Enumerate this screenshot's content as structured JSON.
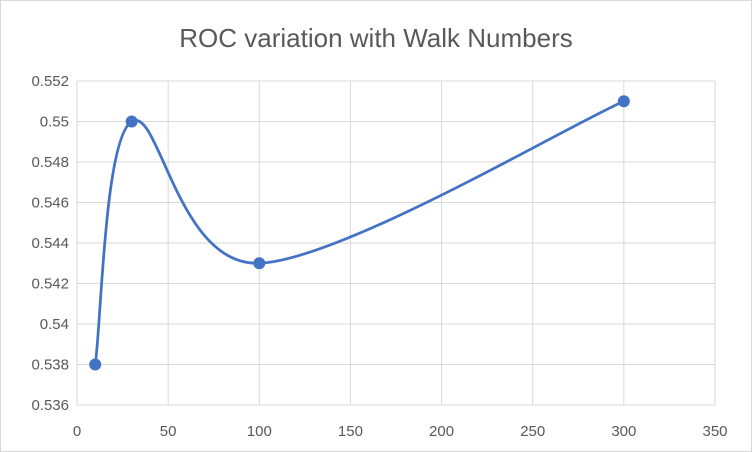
{
  "chart_data": {
    "type": "line",
    "title": "ROC variation with Walk Numbers",
    "xlabel": "",
    "ylabel": "",
    "xlim": [
      0,
      350
    ],
    "ylim": [
      0.536,
      0.552
    ],
    "x_ticks": [
      0,
      50,
      100,
      150,
      200,
      250,
      300,
      350
    ],
    "x_tick_labels": [
      "0",
      "50",
      "100",
      "150",
      "200",
      "250",
      "300",
      "350"
    ],
    "y_ticks": [
      0.536,
      0.538,
      0.54,
      0.542,
      0.544,
      0.546,
      0.548,
      0.55,
      0.552
    ],
    "y_tick_labels": [
      "0.536",
      "0.538",
      "0.54",
      "0.542",
      "0.544",
      "0.546",
      "0.548",
      "0.55",
      "0.552"
    ],
    "grid": true,
    "smooth": true,
    "legend": "none",
    "series": [
      {
        "color": "#4472c4",
        "x": [
          10,
          30,
          100,
          300
        ],
        "y": [
          0.538,
          0.55,
          0.543,
          0.551
        ]
      }
    ]
  }
}
